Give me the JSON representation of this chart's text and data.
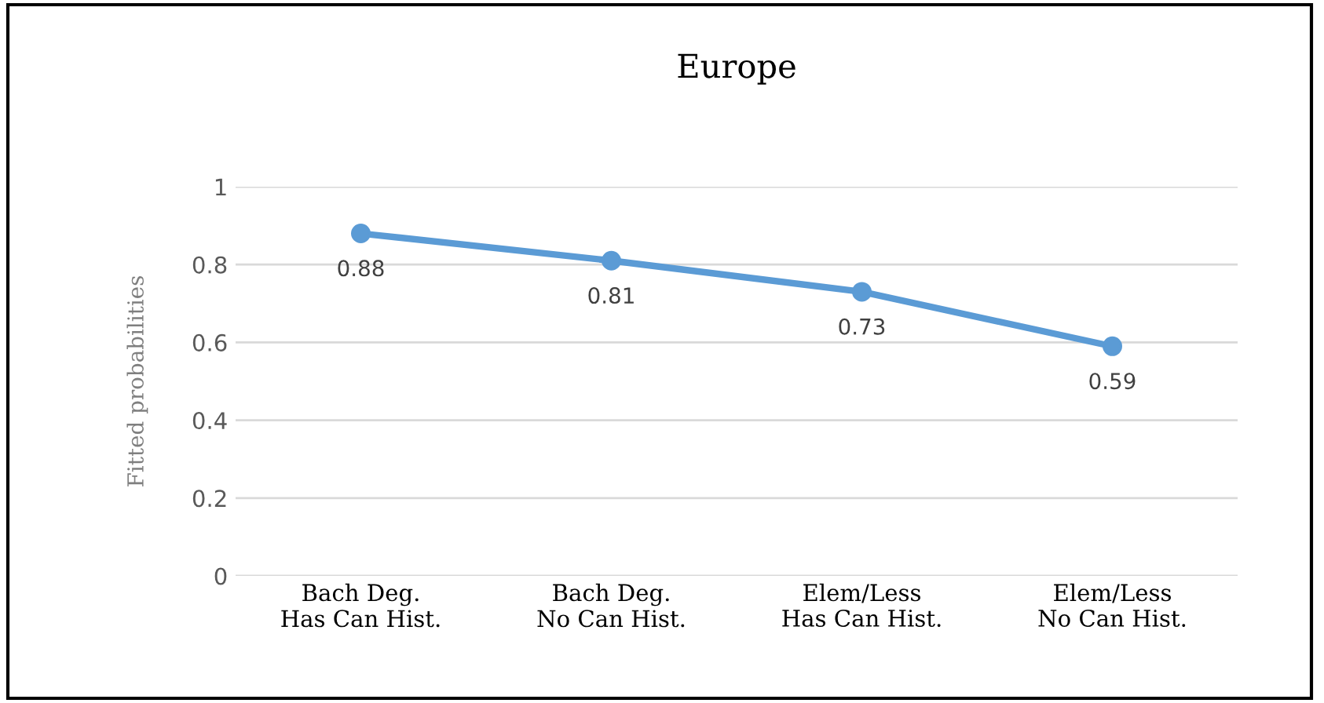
{
  "chart_data": {
    "type": "line",
    "title": "Europe",
    "ylabel": "Fitted probabilities",
    "categories": [
      "Bach Deg.\nHas Can Hist.",
      "Bach Deg.\nNo Can Hist.",
      "Elem/Less\nHas Can Hist.",
      "Elem/Less\nNo Can Hist."
    ],
    "series": [
      {
        "color": "#5b9bd5",
        "values": [
          0.88,
          0.81,
          0.73,
          0.59
        ]
      }
    ],
    "ylim": [
      0,
      1
    ],
    "yticks": [
      0,
      0.2,
      0.4,
      0.6,
      0.8,
      1
    ],
    "grid": "y",
    "marker": "circle",
    "line_style": "solid",
    "data_labels": true,
    "legend": false
  }
}
